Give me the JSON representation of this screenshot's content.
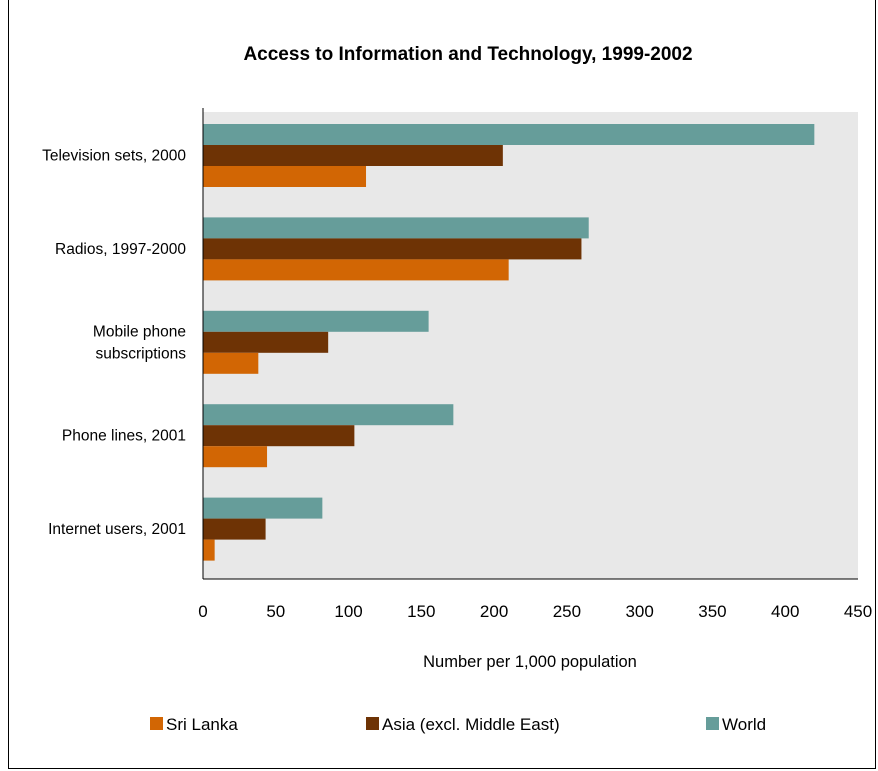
{
  "chart_data": {
    "type": "bar",
    "orientation": "horizontal",
    "title": "Access to Information and Technology, 1999-2002",
    "xlabel": "Number per 1,000 population",
    "ylabel": "",
    "xlim": [
      0,
      450
    ],
    "xticks": [
      "0",
      "50",
      "100",
      "150",
      "200",
      "250",
      "300",
      "350",
      "400",
      "450"
    ],
    "categories": [
      [
        "Television sets, 2000"
      ],
      [
        "Radios, 1997-2000"
      ],
      [
        "Mobile phone",
        "subscriptions"
      ],
      [
        "Phone lines, 2001"
      ],
      [
        "Internet users, 2001"
      ]
    ],
    "series": [
      {
        "name": "World",
        "color": "#669d9a",
        "values": [
          420,
          265,
          155,
          172,
          82
        ]
      },
      {
        "name": "Asia (excl. Middle East)",
        "color": "#6e3305",
        "values": [
          206,
          260,
          86,
          104,
          43
        ]
      },
      {
        "name": "Sri Lanka",
        "color": "#d26604",
        "values": [
          112,
          210,
          38,
          44,
          8
        ]
      }
    ],
    "legend_order": [
      "Sri Lanka",
      "Asia (excl. Middle East)",
      "World"
    ],
    "legend_position": "bottom",
    "plot_background": "#e8e8e8",
    "grid": false
  }
}
